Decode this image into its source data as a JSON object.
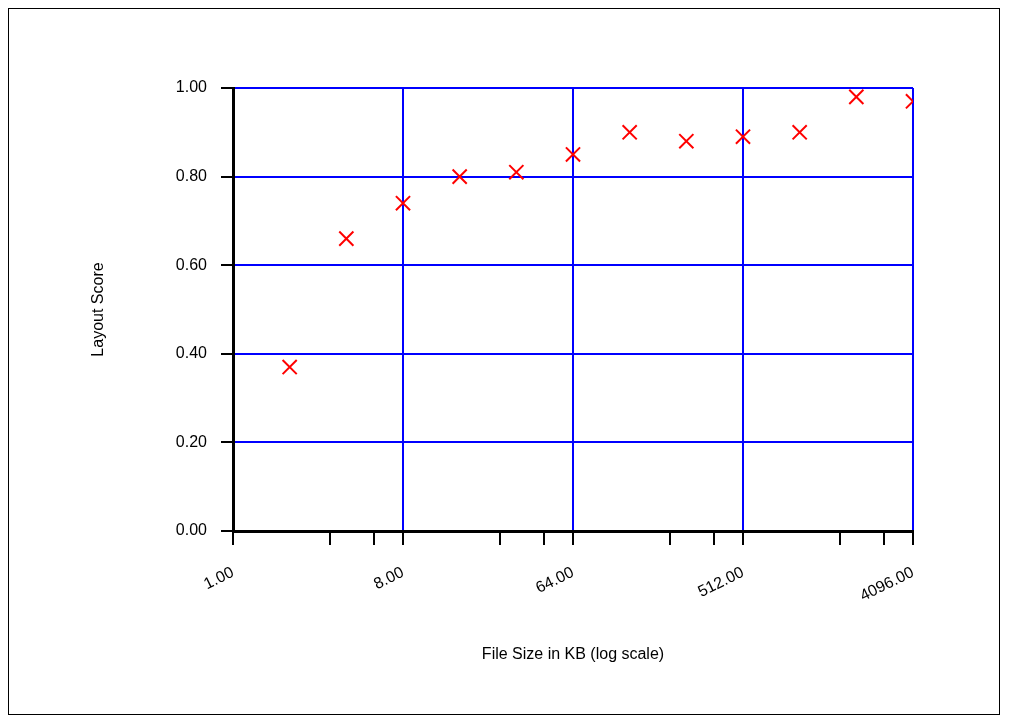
{
  "chart_data": {
    "type": "scatter",
    "xlabel": "File Size in KB (log scale)",
    "ylabel": "Layout Score",
    "x": [
      2,
      4,
      8,
      16,
      32,
      64,
      128,
      256,
      512,
      1024,
      2048,
      4096
    ],
    "series": [
      {
        "color": "#ff0000",
        "values": [
          0.37,
          0.66,
          0.74,
          0.8,
          0.81,
          0.85,
          0.9,
          0.88,
          0.89,
          0.9,
          0.98,
          0.97
        ]
      }
    ],
    "log": "x",
    "marker": "cross",
    "grid": true,
    "legend": false,
    "xlim": [
      1,
      4096
    ],
    "xticks": [
      {
        "value": 1,
        "label": "1.00"
      },
      {
        "value": 3.27,
        "label": null
      },
      {
        "value": 5.6,
        "label": null
      },
      {
        "value": 8,
        "label": "8.00"
      },
      {
        "value": 26.2,
        "label": null
      },
      {
        "value": 45,
        "label": null
      },
      {
        "value": 64,
        "label": "64.00"
      },
      {
        "value": 210,
        "label": null
      },
      {
        "value": 360,
        "label": null
      },
      {
        "value": 512,
        "label": "512.00"
      },
      {
        "value": 1680,
        "label": null
      },
      {
        "value": 2880,
        "label": null
      },
      {
        "value": 4096,
        "label": "4096.00"
      }
    ],
    "ylim": [
      0,
      1
    ],
    "yticks": [
      {
        "value": 0,
        "label": "0.00"
      },
      {
        "value": 0.2,
        "label": "0.20"
      },
      {
        "value": 0.4,
        "label": "0.40"
      },
      {
        "value": 0.6,
        "label": "0.60"
      },
      {
        "value": 0.8,
        "label": "0.80"
      },
      {
        "value": 1,
        "label": "1.00"
      }
    ]
  }
}
